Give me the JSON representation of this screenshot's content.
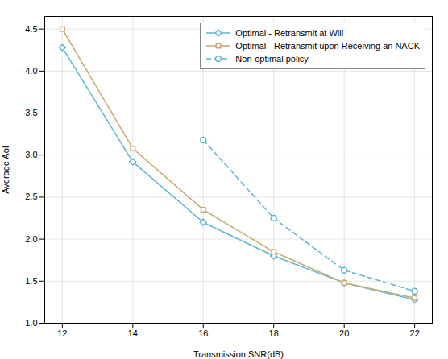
{
  "chart_data": {
    "type": "line",
    "x": [
      12,
      14,
      16,
      18,
      20,
      22
    ],
    "series": [
      {
        "name": "Optimal - Retransmit at Will",
        "color": "#5BB8D4",
        "marker": "diamond",
        "line_style": "solid",
        "values": [
          4.28,
          2.92,
          2.2,
          1.8,
          1.48,
          1.28
        ]
      },
      {
        "name": "Optimal - Retransmit upon Receiving an NACK",
        "color": "#C8A96E",
        "marker": "square",
        "line_style": "solid",
        "values": [
          4.5,
          3.08,
          2.35,
          1.85,
          1.48,
          1.3
        ]
      },
      {
        "name": "Non-optimal policy",
        "color": "#5BB8D4",
        "marker": "circle",
        "line_style": "dashed",
        "values": [
          null,
          null,
          3.18,
          2.25,
          1.63,
          1.38
        ]
      }
    ],
    "xlabel": "Transmission SNR(dB)",
    "ylabel": "Average AoI",
    "xlim": [
      11.5,
      22.5
    ],
    "ylim": [
      1,
      4.65
    ],
    "xticks": [
      12,
      14,
      16,
      18,
      20,
      22
    ],
    "yticks": [
      {
        "value": 1,
        "label": "1.0"
      },
      1.5,
      {
        "value": 2,
        "label": "2.0"
      },
      2.5,
      {
        "value": 3,
        "label": "3.0"
      },
      3.5,
      {
        "value": 4,
        "label": "4.0"
      },
      4.5
    ],
    "grid": true,
    "legend": "upper right"
  }
}
